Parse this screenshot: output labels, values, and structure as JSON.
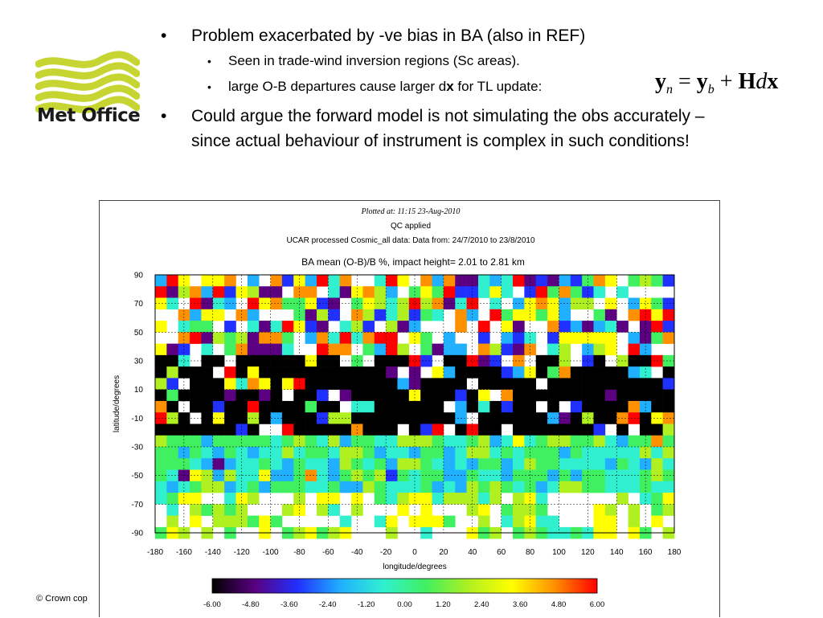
{
  "logo": {
    "text": "Met Office",
    "wave_color": "#c6d531"
  },
  "bullets": [
    {
      "text": "Problem exacerbated by -ve bias in BA (also in REF)",
      "sub": [
        {
          "text": "Seen in trade-wind inversion regions (Sc areas)."
        },
        {
          "text_before": "large O-B departures cause larger d",
          "text_bold": "x",
          "text_after": " for TL update:"
        }
      ]
    },
    {
      "text": "Could argue the forward model is not simulating the obs accurately – since actual behaviour of instrument is complex in such conditions!",
      "sub": []
    }
  ],
  "formula": {
    "y": "y",
    "n": "n",
    "eq": " = ",
    "b": "b",
    "plus": " + ",
    "H": "H",
    "d": "d",
    "x": "x"
  },
  "footer": {
    "copyright": "© Crown cop"
  },
  "chart_data": {
    "type": "heatmap",
    "header_lines": [
      "Plotted at: 11:15 23-Aug-2010",
      "QC applied",
      "UCAR processed Cosmic_all data: Data from: 24/7/2010 to 23/8/2010"
    ],
    "title": "BA mean (O-B)/B %, impact height= 2.01 to 2.81 km",
    "xlabel": "longitude/degrees",
    "ylabel": "latitude/degrees",
    "xlim": [
      -180,
      180
    ],
    "ylim": [
      -90,
      90
    ],
    "xticks": [
      -180,
      -160,
      -140,
      -120,
      -100,
      -80,
      -60,
      -40,
      -20,
      0,
      20,
      40,
      60,
      80,
      100,
      120,
      140,
      160,
      180
    ],
    "yticks": [
      90,
      70,
      50,
      30,
      10,
      -10,
      -30,
      -50,
      -70,
      -90
    ],
    "colorbar": {
      "ticks": [
        "-6.00",
        "-4.80",
        "-3.60",
        "-2.40",
        "-1.20",
        "0.00",
        "1.20",
        "2.40",
        "3.60",
        "4.80",
        "6.00"
      ],
      "range": [
        -6,
        6
      ],
      "colors": [
        "#000000",
        "#5a0080",
        "#2030ff",
        "#20b0ff",
        "#30f0d0",
        "#40f060",
        "#b0f020",
        "#ffff00",
        "#ff9000",
        "#ff0000"
      ]
    },
    "grid_step_deg": 8,
    "bands": [
      {
        "lat_from": 90,
        "lat_to": 36,
        "pattern": "mixed",
        "missing_fraction": 0.25
      },
      {
        "lat_from": 36,
        "lat_to": -26,
        "pattern": "mostly-black",
        "note": "strong negative values, tropics"
      },
      {
        "lat_from": -26,
        "lat_to": -66,
        "pattern": "green-cyan"
      },
      {
        "lat_from": -66,
        "lat_to": -90,
        "pattern": "green-sparse",
        "missing_fraction": 0.35
      }
    ],
    "grid": true
  }
}
